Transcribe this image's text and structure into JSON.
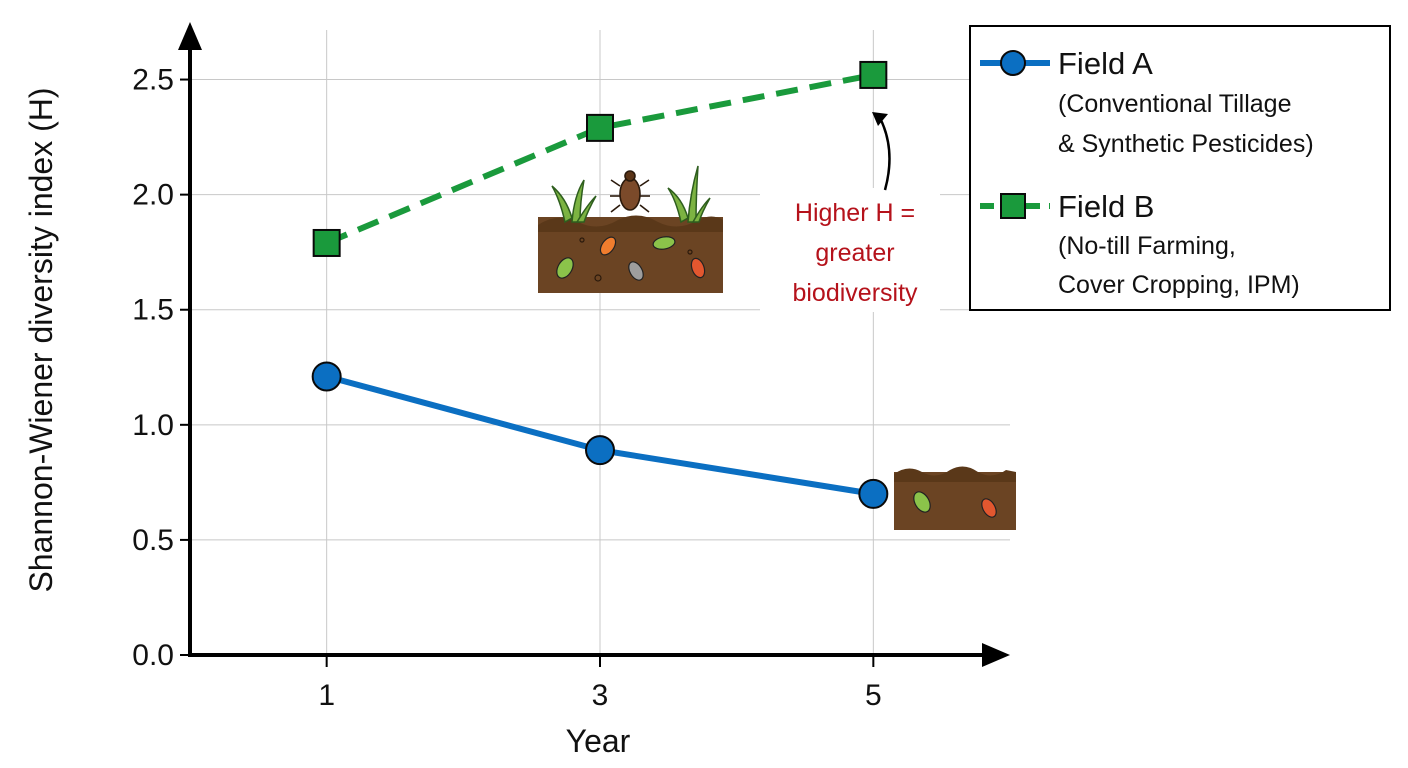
{
  "chart_data": {
    "type": "line",
    "xlabel": "Year",
    "ylabel": "Shannon-Wiener diversity index (H)",
    "x": [
      1,
      3,
      5
    ],
    "xlim": [
      0,
      6
    ],
    "ylim": [
      0,
      2.75
    ],
    "yticks": [
      0.0,
      0.5,
      1.0,
      1.5,
      2.0,
      2.5
    ],
    "ytick_labels": [
      "0.0",
      "0.5",
      "1.0",
      "1.5",
      "2.0",
      "2.5"
    ],
    "xtick_labels": [
      "1",
      "3",
      "5"
    ],
    "grid": true,
    "legend_position": "top-right",
    "series": [
      {
        "name": "Field A",
        "subtitle_lines": [
          "(Conventional Tillage",
          "& Synthetic Pesticides)"
        ],
        "values": [
          1.21,
          0.89,
          0.7
        ],
        "color": "#0b6fc2",
        "line_style": "solid",
        "marker": "circle"
      },
      {
        "name": "Field B",
        "subtitle_lines": [
          "(No-till Farming,",
          "Cover Cropping, IPM)"
        ],
        "values": [
          1.79,
          2.29,
          2.52
        ],
        "color": "#1a9a3c",
        "line_style": "dashed",
        "marker": "square"
      }
    ],
    "annotation": {
      "lines": [
        "Higher H =",
        "greater",
        "biodiversity"
      ],
      "color": "#b5121b",
      "points_to": {
        "x": 5,
        "y": 2.52
      }
    }
  },
  "illustrations": {
    "rich_soil": "soil-with-grass-and-many-beetles",
    "poor_soil": "soil-with-two-beetles"
  }
}
